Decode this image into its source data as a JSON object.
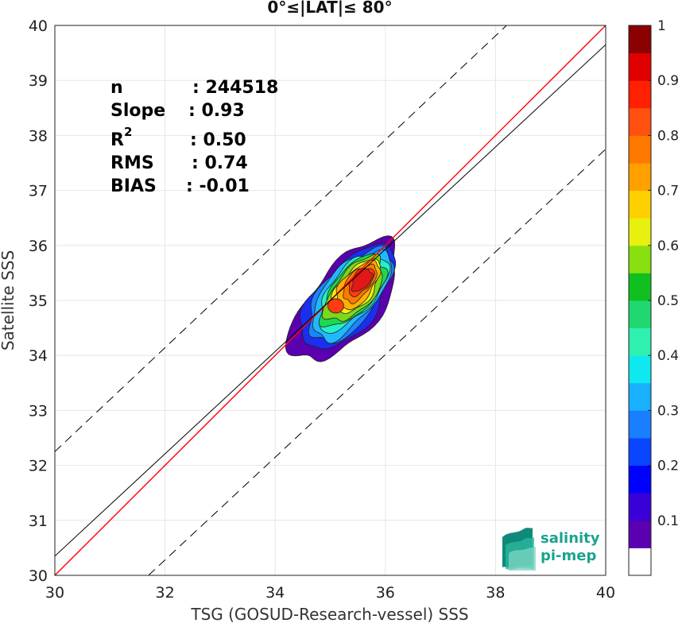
{
  "chart_data": {
    "type": "heatmap",
    "subtype": "density-contour-scatter",
    "title": "0°≤|LAT|≤ 80°",
    "xlabel": "TSG (GOSUD-Research-vessel) SSS",
    "ylabel": "Satellite SSS",
    "xlim": [
      30,
      40
    ],
    "ylim": [
      30,
      40
    ],
    "xticks": [
      "30",
      "32",
      "34",
      "36",
      "38",
      "40"
    ],
    "yticks": [
      "30",
      "31",
      "32",
      "33",
      "34",
      "35",
      "36",
      "37",
      "38",
      "39",
      "40"
    ],
    "grid": true,
    "stats": {
      "n_label": "n",
      "n_value": ": 244518",
      "slope_label": "Slope",
      "slope_value": ": 0.93",
      "r2_label": "R",
      "r2_sup": "2",
      "r2_value": ": 0.50",
      "rms_label": "RMS",
      "rms_value": ": 0.74",
      "bias_label": "BIAS",
      "bias_value": ": -0.01"
    },
    "lines": [
      {
        "name": "one-to-one",
        "color": "#ff0000",
        "points": [
          [
            30,
            30
          ],
          [
            40,
            40
          ]
        ]
      },
      {
        "name": "regression",
        "color": "#000000",
        "points": [
          [
            30,
            30.35
          ],
          [
            40,
            39.65
          ]
        ]
      },
      {
        "name": "upper-bound",
        "color": "#000000",
        "dashed": true,
        "points": [
          [
            30,
            32.25
          ],
          [
            38.2,
            40
          ]
        ]
      },
      {
        "name": "lower-bound",
        "color": "#000000",
        "dashed": true,
        "points": [
          [
            31.7,
            30
          ],
          [
            40,
            37.75
          ]
        ]
      }
    ],
    "density_levels": [
      {
        "level": 0.05,
        "color": "#5a00b0"
      },
      {
        "level": 0.2,
        "color": "#1a2ff0"
      },
      {
        "level": 0.3,
        "color": "#1a85ff"
      },
      {
        "level": 0.35,
        "color": "#22b8ff"
      },
      {
        "level": 0.45,
        "color": "#22f0c8"
      },
      {
        "level": 0.5,
        "color": "#20d850"
      },
      {
        "level": 0.55,
        "color": "#7cd818"
      },
      {
        "level": 0.65,
        "color": "#f0f018"
      },
      {
        "level": 0.7,
        "color": "#ffb000"
      },
      {
        "level": 0.8,
        "color": "#ff7800"
      },
      {
        "level": 0.88,
        "color": "#ff3c10"
      },
      {
        "level": 0.93,
        "color": "#e01818"
      }
    ],
    "density_center": [
      35.6,
      35.4
    ],
    "colorbar": {
      "range": [
        0,
        1
      ],
      "ticks": [
        "0.1",
        "0.2",
        "0.3",
        "0.4",
        "0.5",
        "0.6",
        "0.7",
        "0.8",
        "0.9",
        "1"
      ],
      "colors": [
        "#ffffff",
        "#5a00b0",
        "#3a00d8",
        "#0000ff",
        "#0a45ff",
        "#1a7fff",
        "#18b0ff",
        "#10e8f0",
        "#30f0b0",
        "#20d870",
        "#10c020",
        "#88e010",
        "#e8f010",
        "#ffd000",
        "#ffa000",
        "#ff7800",
        "#ff5010",
        "#ff2000",
        "#e00000",
        "#8b0000"
      ]
    }
  },
  "logo": {
    "line1": "salinity",
    "line2": "pi-mep"
  }
}
